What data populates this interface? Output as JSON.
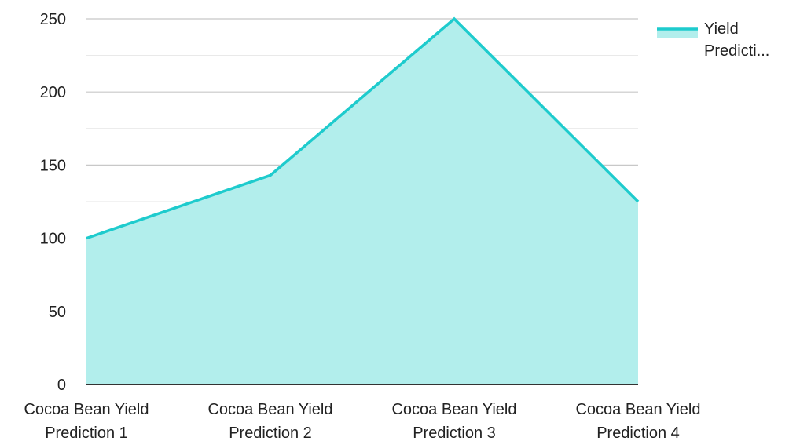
{
  "chart_data": {
    "type": "area",
    "categories": [
      [
        "Cocoa Bean Yield",
        "Prediction 1"
      ],
      [
        "Cocoa Bean Yield",
        "Prediction 2"
      ],
      [
        "Cocoa Bean Yield",
        "Prediction 3"
      ],
      [
        "Cocoa Bean Yield",
        "Prediction 4"
      ]
    ],
    "series": [
      {
        "name": "Yield Predicti...",
        "legend_lines": [
          "Yield",
          "Predicti..."
        ],
        "values": [
          100,
          143,
          250,
          125
        ]
      }
    ],
    "ylim": [
      0,
      250
    ],
    "yticks": [
      0,
      50,
      100,
      150,
      200,
      250
    ],
    "grid": true,
    "legend_position": "top-right",
    "colors": {
      "line": "#1ecbcd",
      "fill": "#b2eeec",
      "grid_major": "#c8c8c8",
      "grid_minor": "#e6e6e6",
      "axis": "#333333"
    }
  }
}
